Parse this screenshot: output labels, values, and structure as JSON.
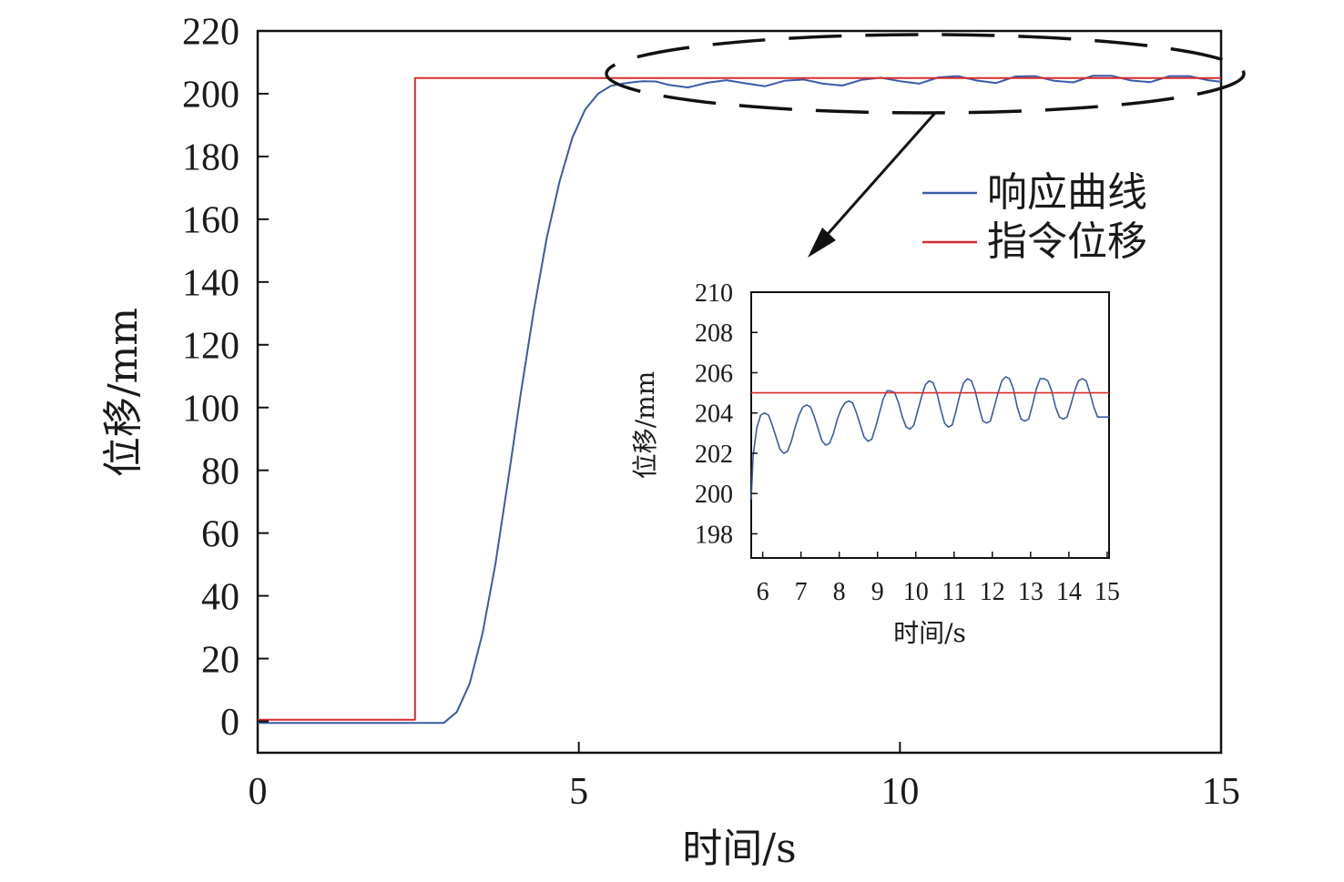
{
  "chart_data": [
    {
      "type": "line",
      "xlabel": "时间/s",
      "ylabel": "位移/mm",
      "xlim": [
        0,
        15
      ],
      "ylim": [
        -10,
        220
      ],
      "xticks": [
        "0",
        "5",
        "10",
        "15"
      ],
      "yticks": [
        "0",
        "20",
        "40",
        "60",
        "80",
        "100",
        "120",
        "140",
        "160",
        "180",
        "200",
        "220"
      ],
      "legend_position": "right",
      "series": [
        {
          "name": "响应曲线",
          "color": "#3a5aa8",
          "x": [
            0,
            2.9,
            3.1,
            3.3,
            3.5,
            3.7,
            3.9,
            4.1,
            4.3,
            4.5,
            4.7,
            4.9,
            5.1,
            5.3,
            5.5,
            5.7,
            5.9,
            6.0,
            6.2,
            6.4,
            6.7,
            7.0,
            7.3,
            7.6,
            7.9,
            8.2,
            8.5,
            8.8,
            9.1,
            9.4,
            9.7,
            10.0,
            10.3,
            10.6,
            10.9,
            11.2,
            11.5,
            11.8,
            12.1,
            12.4,
            12.7,
            13.0,
            13.3,
            13.6,
            13.9,
            14.2,
            14.5,
            14.8,
            15.0
          ],
          "y": [
            -0.5,
            -0.5,
            3,
            12,
            28,
            50,
            77,
            105,
            131,
            154,
            172,
            186,
            195,
            200,
            202.5,
            203.3,
            203.8,
            204,
            203.9,
            202.8,
            202,
            203.5,
            204.3,
            203.3,
            202.4,
            204.1,
            204.5,
            203.2,
            202.6,
            204.4,
            205.1,
            204,
            203.2,
            205.2,
            205.6,
            204.2,
            203.4,
            205.5,
            205.6,
            204.1,
            203.6,
            205.7,
            205.7,
            204.2,
            203.7,
            205.6,
            205.6,
            204.3,
            203.8
          ]
        },
        {
          "name": "指令位移",
          "color": "#d62d2d",
          "x": [
            0,
            2.45,
            2.45,
            15
          ],
          "y": [
            0.5,
            0.5,
            205,
            205
          ]
        }
      ]
    },
    {
      "type": "line",
      "xlabel": "时间/s",
      "ylabel": "位移/mm",
      "xlim": [
        5.7,
        15.05
      ],
      "ylim": [
        196.8,
        210
      ],
      "xticks": [
        "6",
        "7",
        "8",
        "9",
        "10",
        "11",
        "12",
        "13",
        "14",
        "15"
      ],
      "yticks": [
        "198",
        "200",
        "202",
        "204",
        "206",
        "208",
        "210"
      ],
      "series": [
        {
          "name": "响应曲线",
          "color": "#3a5aa8",
          "x": [
            5.7,
            5.75,
            5.85,
            5.95,
            6.05,
            6.15,
            6.25,
            6.35,
            6.45,
            6.55,
            6.65,
            6.75,
            6.85,
            6.95,
            7.05,
            7.15,
            7.25,
            7.35,
            7.45,
            7.55,
            7.65,
            7.75,
            7.85,
            7.95,
            8.05,
            8.15,
            8.25,
            8.35,
            8.45,
            8.55,
            8.65,
            8.75,
            8.85,
            8.95,
            9.05,
            9.15,
            9.25,
            9.35,
            9.45,
            9.55,
            9.65,
            9.75,
            9.85,
            9.95,
            10.05,
            10.15,
            10.25,
            10.35,
            10.45,
            10.55,
            10.65,
            10.75,
            10.85,
            10.95,
            11.05,
            11.15,
            11.25,
            11.35,
            11.45,
            11.55,
            11.65,
            11.75,
            11.85,
            11.95,
            12.05,
            12.15,
            12.25,
            12.35,
            12.45,
            12.55,
            12.65,
            12.75,
            12.85,
            12.95,
            13.05,
            13.15,
            13.25,
            13.35,
            13.45,
            13.55,
            13.65,
            13.75,
            13.85,
            13.95,
            14.05,
            14.15,
            14.25,
            14.35,
            14.45,
            14.55,
            14.65,
            14.75,
            14.85,
            14.95,
            15.05
          ],
          "y": [
            199.7,
            201.9,
            203.3,
            203.9,
            204.0,
            203.9,
            203.4,
            202.8,
            202.2,
            202.0,
            202.1,
            202.6,
            203.3,
            203.9,
            204.3,
            204.4,
            204.3,
            203.8,
            203.2,
            202.6,
            202.4,
            202.5,
            203.0,
            203.7,
            204.2,
            204.5,
            204.6,
            204.5,
            204.0,
            203.4,
            202.8,
            202.6,
            202.7,
            203.3,
            204.0,
            204.7,
            205.1,
            205.1,
            205.0,
            204.5,
            203.8,
            203.3,
            203.2,
            203.4,
            204.1,
            204.8,
            205.4,
            205.6,
            205.5,
            205.0,
            204.2,
            203.5,
            203.3,
            203.4,
            204.1,
            204.9,
            205.5,
            205.7,
            205.6,
            205.1,
            204.3,
            203.6,
            203.5,
            203.6,
            204.3,
            205.0,
            205.6,
            205.8,
            205.7,
            205.2,
            204.3,
            203.7,
            203.6,
            203.7,
            204.4,
            205.2,
            205.7,
            205.7,
            205.6,
            205.1,
            204.3,
            203.8,
            203.7,
            203.8,
            204.4,
            205.1,
            205.6,
            205.7,
            205.6,
            205.0,
            204.3,
            203.8,
            203.8,
            203.8,
            203.8
          ]
        },
        {
          "name": "指令位移",
          "color": "#d62d2d",
          "x": [
            5.7,
            15.05
          ],
          "y": [
            205,
            205
          ]
        }
      ]
    }
  ]
}
